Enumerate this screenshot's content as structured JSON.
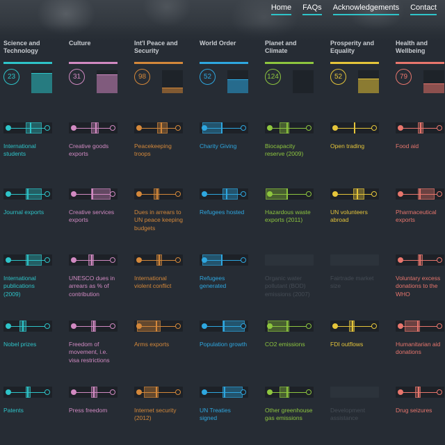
{
  "nav": [
    "Home",
    "FAQs",
    "Acknowledgements",
    "Contact"
  ],
  "categories": [
    {
      "title": "Science and Technology",
      "score": "23",
      "color": "#2ec4c9",
      "fill": 0.85,
      "indicators": [
        {
          "label": "International students",
          "range": [
            0.45,
            0.78
          ],
          "mark": 0.55
        },
        {
          "label": "Journal exports",
          "range": [
            0.45,
            0.78
          ],
          "mark": 0.5
        },
        {
          "label": "International publications (2009)",
          "range": [
            0.45,
            0.78
          ],
          "mark": 0.5
        },
        {
          "label": "Nobel prizes",
          "range": [
            0.33,
            0.47
          ],
          "mark": 0.4
        },
        {
          "label": "Patents",
          "range": [
            0.45,
            0.55
          ],
          "mark": 0.5
        }
      ]
    },
    {
      "title": "Culture",
      "score": "31",
      "color": "#d18ac2",
      "fill": 0.78,
      "indicators": [
        {
          "label": "Creative goods exports",
          "range": [
            0.45,
            0.62
          ],
          "mark": 0.55
        },
        {
          "label": "Creative services exports",
          "range": [
            0.45,
            0.85
          ],
          "mark": 0.48
        },
        {
          "label": "UNESCO dues in arrears as % of contribution",
          "range": [
            0.4,
            0.52
          ],
          "mark": 0.47
        },
        {
          "label": "Freedom of movement, i.e. visa restrictions",
          "range": [
            0.46,
            0.56
          ],
          "mark": 0.51
        },
        {
          "label": "Press freedom",
          "range": [
            0.45,
            0.58
          ],
          "mark": 0.52
        }
      ]
    },
    {
      "title": "Int'l Peace and Security",
      "score": "98",
      "color": "#d4883a",
      "fill": 0.22,
      "indicators": [
        {
          "label": "Peacekeeping troops",
          "range": [
            0.47,
            0.68
          ],
          "mark": 0.55
        },
        {
          "label": "Dues in arrears to UN peace keeping budgets",
          "range": [
            0.4,
            0.52
          ],
          "mark": 0.47
        },
        {
          "label": "International violent conflict",
          "range": [
            0.45,
            0.57
          ],
          "mark": 0.52
        },
        {
          "label": "Arms exports",
          "range": [
            0.06,
            0.55
          ],
          "mark": 0.45
        },
        {
          "label": "Internet security (2012)",
          "range": [
            0.2,
            0.5
          ],
          "mark": 0.45
        }
      ]
    },
    {
      "title": "World Order",
      "score": "52",
      "color": "#2ea7e0",
      "fill": 0.58,
      "indicators": [
        {
          "label": "Charity Giving",
          "range": [
            0.05,
            0.47
          ],
          "mark": 0.45
        },
        {
          "label": "Refugees hosted",
          "range": [
            0.47,
            0.78
          ],
          "mark": 0.55
        },
        {
          "label": "Refugees generated",
          "range": [
            0.05,
            0.47
          ],
          "mark": 0.45
        },
        {
          "label": "Population growth",
          "range": [
            0.47,
            0.93
          ],
          "mark": 0.5
        },
        {
          "label": "UN Treaties signed",
          "range": [
            0.47,
            0.88
          ],
          "mark": 0.52
        }
      ]
    },
    {
      "title": "Planet and Climate",
      "score": "124",
      "color": "#8ec63f",
      "fill": 0.0,
      "indicators": [
        {
          "label": "Biocapacity reserve (2009)",
          "range": [
            0.3,
            0.5
          ],
          "mark": 0.45
        },
        {
          "label": "Hazardous waste exports (2011)",
          "range": [
            0.02,
            0.47
          ],
          "mark": 0.45
        },
        {
          "label": "Organic water pollutant (BOD) emissions (2007)",
          "disabled": true
        },
        {
          "label": "CO2 emissions",
          "range": [
            0.06,
            0.5
          ],
          "mark": 0.45
        },
        {
          "label": "Other greenhouse gas emissions",
          "range": [
            0.3,
            0.5
          ],
          "mark": 0.45
        }
      ]
    },
    {
      "title": "Prosperity and Equality",
      "score": "52",
      "color": "#e5c53a",
      "fill": 0.6,
      "indicators": [
        {
          "label": "Open trading",
          "range": [
            0.48,
            0.52
          ],
          "mark": 0.5
        },
        {
          "label": "UN volunteers abroad",
          "range": [
            0.47,
            0.7
          ],
          "mark": 0.55
        },
        {
          "label": "Fairtrade market size",
          "disabled": true
        },
        {
          "label": "FDI outflows",
          "range": [
            0.38,
            0.5
          ],
          "mark": 0.45
        },
        {
          "label": "Development assistance",
          "disabled": true
        }
      ]
    },
    {
      "title": "Health and Wellbeing",
      "score": "79",
      "color": "#e8766d",
      "fill": 0.38,
      "indicators": [
        {
          "label": "Food aid",
          "range": [
            0.45,
            0.57
          ],
          "mark": 0.52
        },
        {
          "label": "Pharmaceutical exports",
          "range": [
            0.45,
            0.8
          ],
          "mark": 0.5
        },
        {
          "label": "Voluntary excess donations to the WHO",
          "range": [
            0.45,
            0.55
          ],
          "mark": 0.5
        },
        {
          "label": "Humanitarian aid donations",
          "range": [
            0.18,
            0.5
          ],
          "mark": 0.45
        },
        {
          "label": "Drug seizures",
          "range": [
            0.4,
            0.52
          ],
          "mark": 0.47
        }
      ]
    }
  ]
}
